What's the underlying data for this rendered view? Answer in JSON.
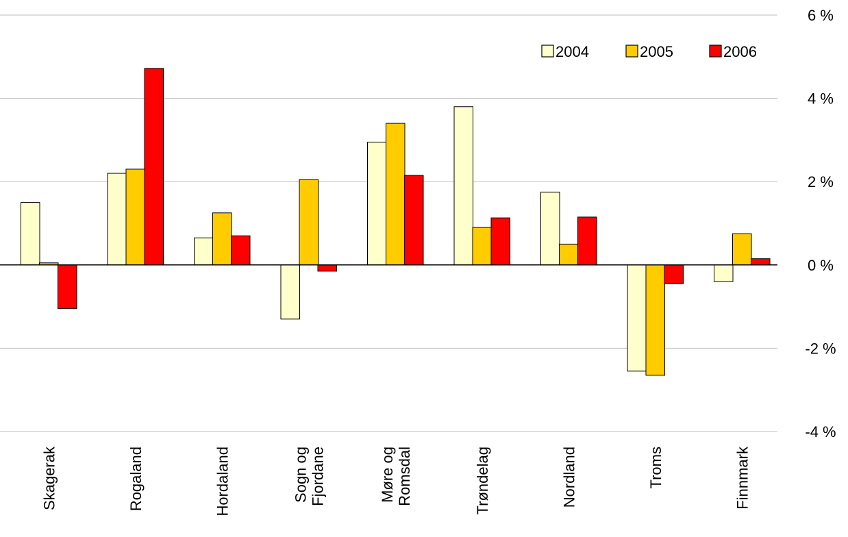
{
  "chart_data": {
    "type": "bar",
    "categories": [
      [
        "Skagerak"
      ],
      [
        "Rogaland"
      ],
      [
        "Hordaland"
      ],
      [
        "Sogn og",
        "Fjordane"
      ],
      [
        "Møre og",
        "Romsdal"
      ],
      [
        "Trøndelag"
      ],
      [
        "Nordland"
      ],
      [
        "Troms"
      ],
      [
        "Finnmark"
      ]
    ],
    "series": [
      {
        "name": "2004",
        "color": "#FFFFCC",
        "values": [
          1.5,
          2.2,
          0.65,
          -1.3,
          2.95,
          3.8,
          1.75,
          -2.55,
          -0.4
        ]
      },
      {
        "name": "2005",
        "color": "#FFCC00",
        "values": [
          0.05,
          2.3,
          1.25,
          2.05,
          3.4,
          0.9,
          0.5,
          -2.65,
          0.75
        ]
      },
      {
        "name": "2006",
        "color": "#FF0000",
        "values": [
          -1.05,
          4.72,
          0.7,
          -0.15,
          2.15,
          1.13,
          1.15,
          -0.45,
          0.15
        ]
      }
    ],
    "yticks": [
      "6 %",
      "4 %",
      "2 %",
      "0 %",
      "-2 %",
      "-4 %"
    ],
    "ytick_values": [
      6,
      4,
      2,
      0,
      -2,
      -4
    ],
    "ylim": [
      -4,
      6
    ],
    "y_axis_position": "right",
    "grid": true,
    "legend_position": "top-right",
    "title": "",
    "xlabel": "",
    "ylabel": ""
  }
}
